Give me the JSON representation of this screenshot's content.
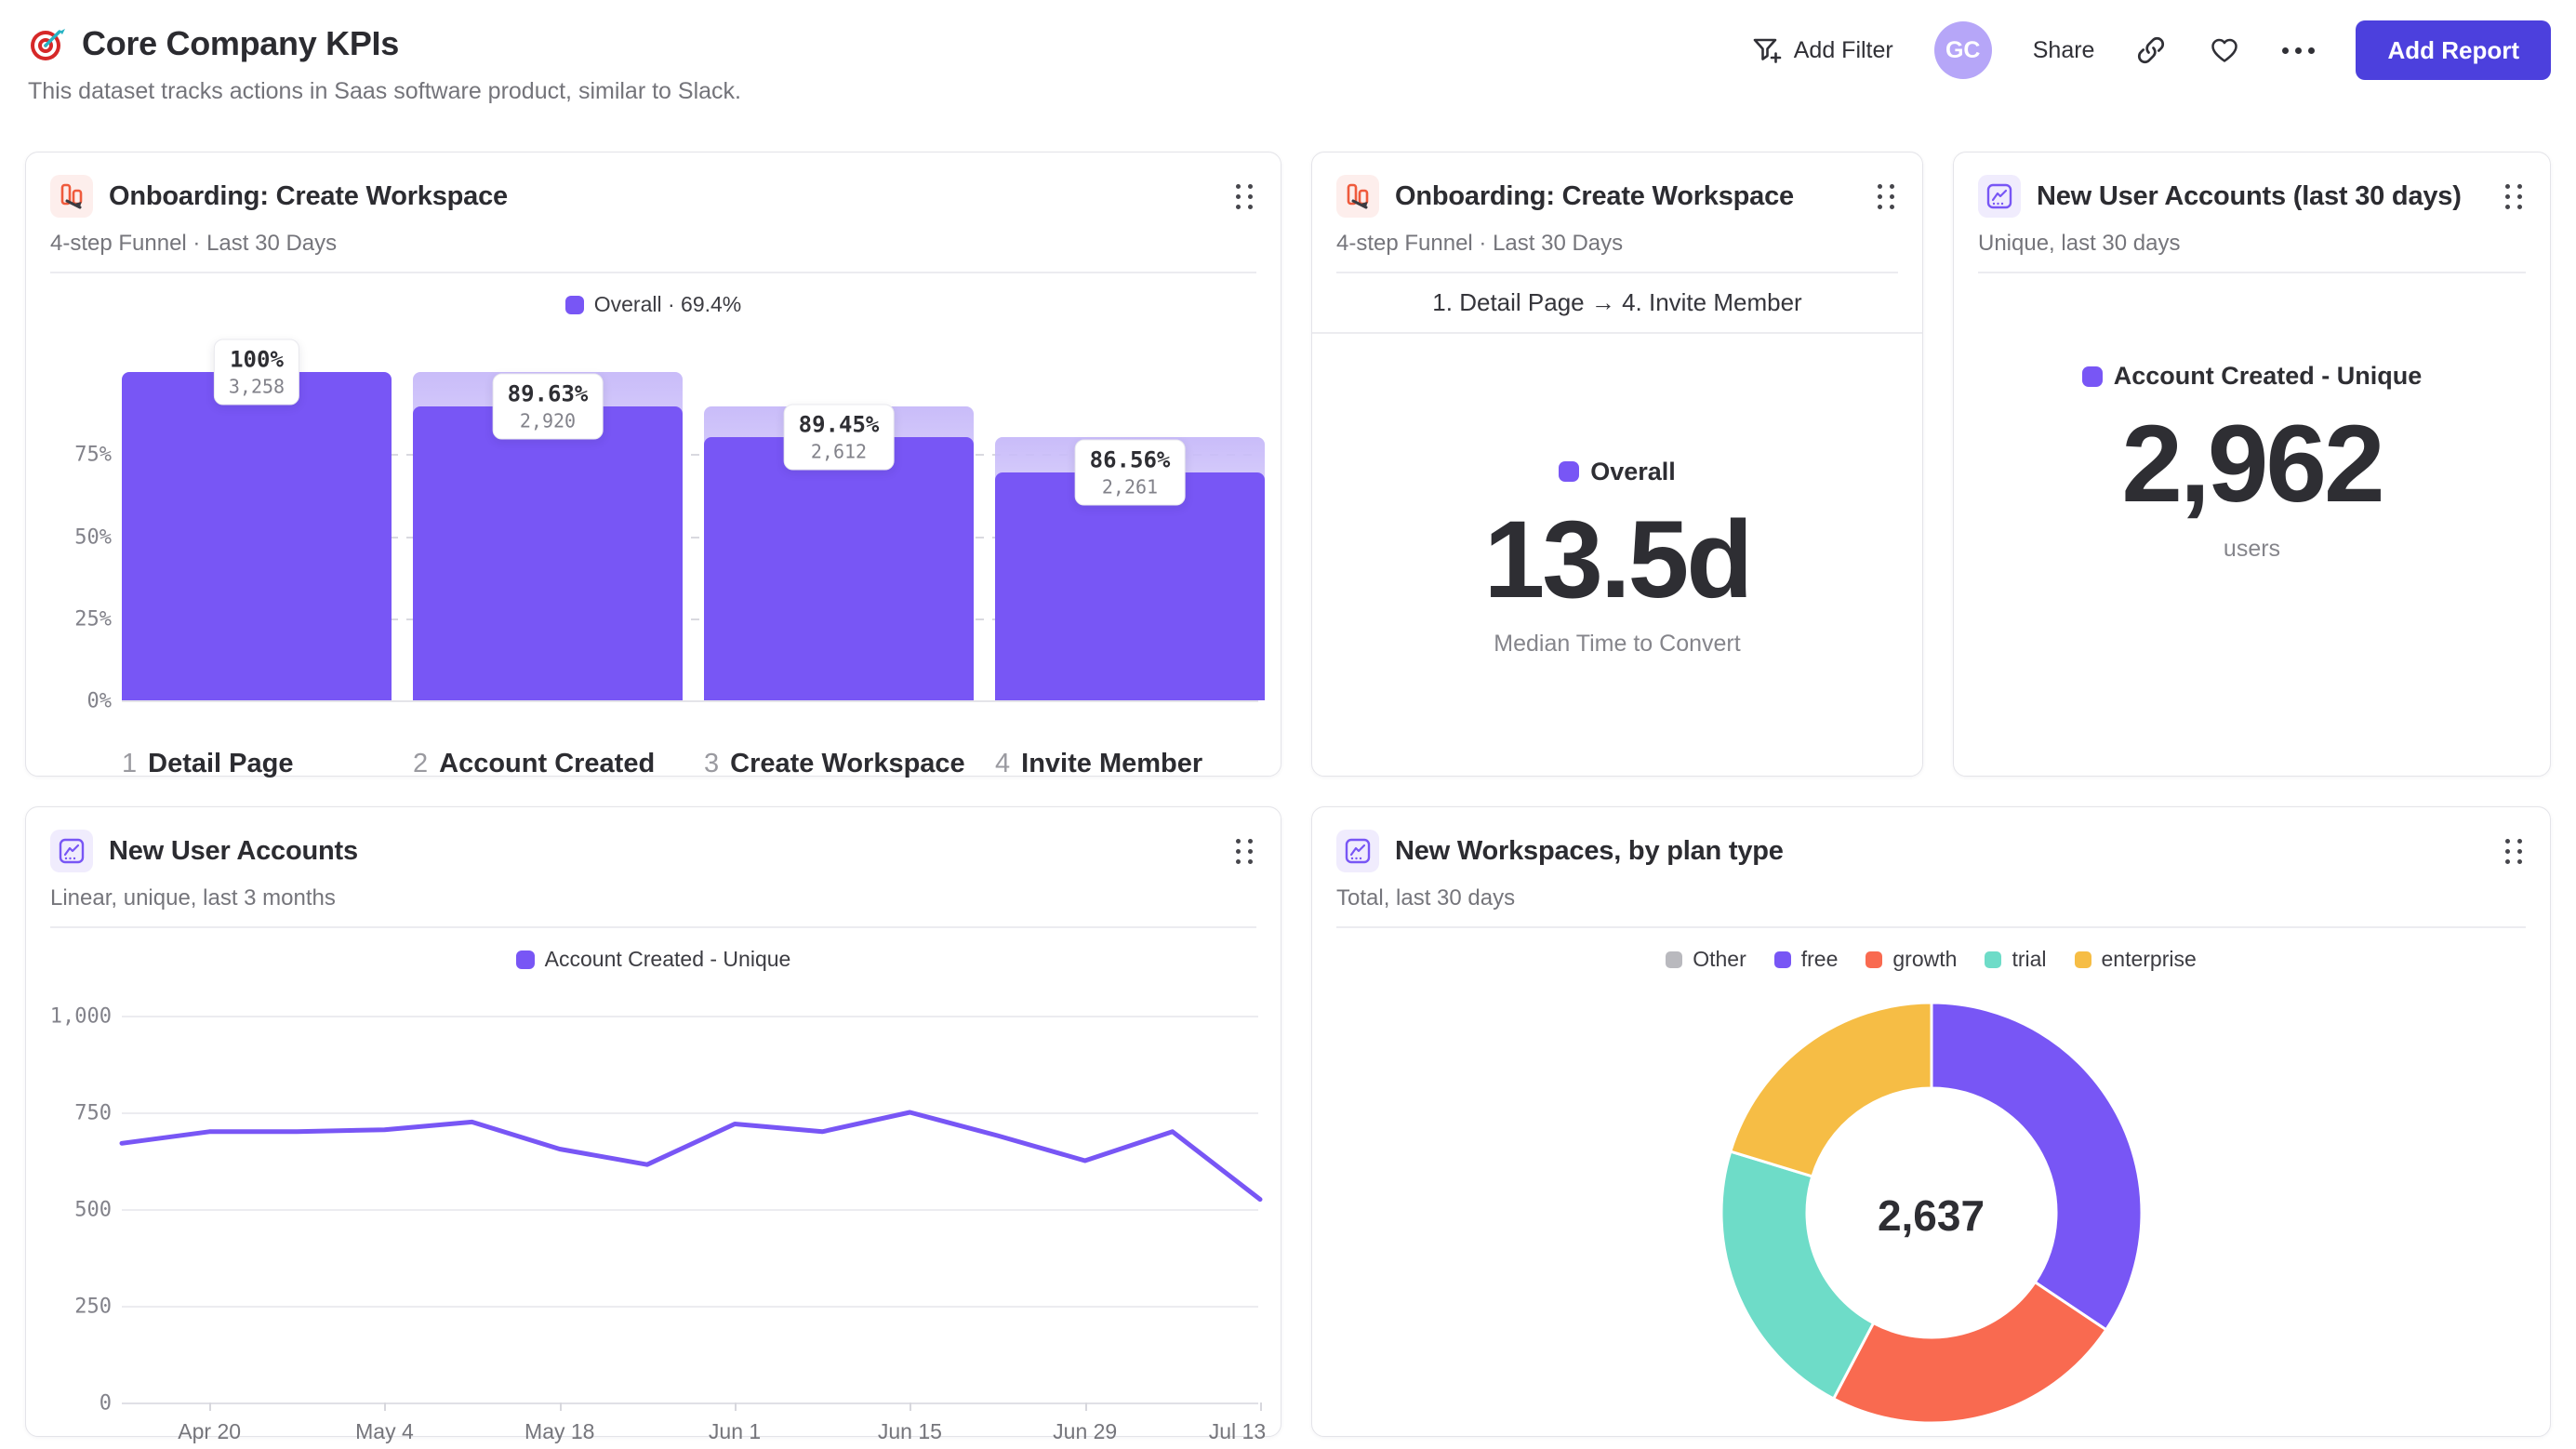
{
  "header": {
    "title": "Core Company KPIs",
    "subtitle": "This dataset tracks actions in Saas software product, similar to Slack."
  },
  "toolbar": {
    "add_filter_label": "Add Filter",
    "avatar_initials": "GC",
    "share_label": "Share",
    "add_report_label": "Add Report"
  },
  "colors": {
    "accent_purple": "#7856f5",
    "button_indigo": "#4c40dd",
    "growth_orange": "#f96a50",
    "trial_teal": "#6edcc8",
    "enterprise_yellow": "#f6bd45",
    "other_gray": "#b9b9be",
    "funnel_icon_red": "#ef5a3c"
  },
  "cards": {
    "funnel": {
      "title": "Onboarding: Create Workspace",
      "subtitle": "4-step Funnel · Last 30 Days",
      "legend_label": "Overall · 69.4%"
    },
    "median": {
      "title": "Onboarding: Create Workspace",
      "subtitle": "4-step Funnel · Last 30 Days",
      "range_label": "1. Detail Page → 4. Invite Member",
      "legend_label": "Overall",
      "value": "13.5d",
      "caption": "Median Time to Convert"
    },
    "new_users_30d": {
      "title": "New User Accounts (last 30 days)",
      "subtitle": "Unique, last 30 days",
      "legend_label": "Account Created - Unique",
      "value": "2,962",
      "caption": "users"
    },
    "new_users_trend": {
      "title": "New User Accounts",
      "subtitle": "Linear, unique, last 3 months",
      "legend_label": "Account Created - Unique"
    },
    "workspaces": {
      "title": "New Workspaces, by plan type",
      "subtitle": "Total, last 30 days",
      "center_label": "2,637"
    }
  },
  "chart_data": [
    {
      "id": "onboarding-funnel",
      "type": "bar",
      "title": "Onboarding: Create Workspace",
      "subtitle": "4-step Funnel · Last 30 Days",
      "legend": "Overall · 69.4%",
      "overall_conversion_pct": 69.4,
      "ylim": [
        0,
        100
      ],
      "yticks": [
        {
          "label": "75%",
          "value": 75
        },
        {
          "label": "50%",
          "value": 50
        },
        {
          "label": "25%",
          "value": 25
        },
        {
          "label": "0%",
          "value": 0
        }
      ],
      "steps": [
        {
          "n": "1",
          "label": "Detail Page",
          "value": 3258,
          "value_label": "3,258",
          "step_pct_label": "100%",
          "overall_pct": 100
        },
        {
          "n": "2",
          "label": "Account Created",
          "value": 2920,
          "value_label": "2,920",
          "step_pct_label": "89.63%",
          "overall_pct": 89.63
        },
        {
          "n": "3",
          "label": "Create Workspace",
          "value": 2612,
          "value_label": "2,612",
          "step_pct_label": "89.45%",
          "overall_pct": 80.17
        },
        {
          "n": "4",
          "label": "Invite Member",
          "value": 2261,
          "value_label": "2,261",
          "step_pct_label": "86.56%",
          "overall_pct": 69.4
        }
      ]
    },
    {
      "id": "new-user-accounts-trend",
      "type": "line",
      "title": "New User Accounts",
      "subtitle": "Linear, unique, last 3 months",
      "grid": true,
      "legend_position": "top",
      "ylim": [
        0,
        1000
      ],
      "yticks": [
        {
          "label": "1,000",
          "value": 1000
        },
        {
          "label": "750",
          "value": 750
        },
        {
          "label": "500",
          "value": 500
        },
        {
          "label": "250",
          "value": 250
        },
        {
          "label": "0",
          "value": 0
        }
      ],
      "series": [
        {
          "name": "Account Created - Unique",
          "color": "#7856f5",
          "x": [
            "Apr 13",
            "Apr 20",
            "Apr 27",
            "May 4",
            "May 11",
            "May 18",
            "May 25",
            "Jun 1",
            "Jun 8",
            "Jun 15",
            "Jun 22",
            "Jun 29",
            "Jul 6",
            "Jul 13"
          ],
          "values": [
            670,
            700,
            700,
            705,
            725,
            655,
            615,
            720,
            700,
            750,
            690,
            625,
            700,
            525
          ]
        }
      ],
      "x_tick_indices": [
        1,
        3,
        5,
        7,
        9,
        11,
        13
      ],
      "x_tick_labels": [
        "Apr 20",
        "May 4",
        "May 18",
        "Jun 1",
        "Jun 15",
        "Jun 29",
        "Jul 13"
      ]
    },
    {
      "id": "new-workspaces-by-plan",
      "type": "pie",
      "donut": true,
      "title": "New Workspaces, by plan type",
      "legend_position": "top",
      "total": 2637,
      "total_label": "2,637",
      "segments": [
        {
          "name": "Other",
          "color": "#b9b9be",
          "value": 0
        },
        {
          "name": "free",
          "color": "#7856f5",
          "value": 907
        },
        {
          "name": "growth",
          "color": "#f96a50",
          "value": 615
        },
        {
          "name": "trial",
          "color": "#6edcc8",
          "value": 580
        },
        {
          "name": "enterprise",
          "color": "#f6bd45",
          "value": 535
        }
      ]
    },
    {
      "id": "median-time-to-convert",
      "type": "metric",
      "range": "1. Detail Page → 4. Invite Member",
      "series_label": "Overall",
      "value": "13.5d",
      "caption": "Median Time to Convert"
    },
    {
      "id": "new-user-accounts-30d",
      "type": "metric",
      "series_label": "Account Created - Unique",
      "value": "2,962",
      "caption": "users"
    }
  ]
}
